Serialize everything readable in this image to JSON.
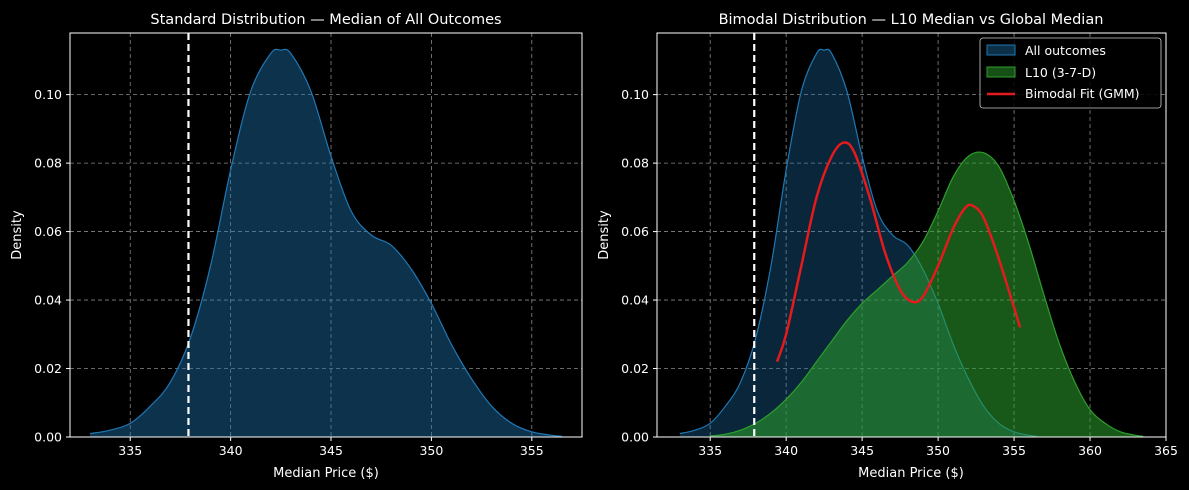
{
  "chart_data": [
    {
      "type": "area",
      "title": "Standard Distribution — Median of All Outcomes",
      "xlabel": "Median Price ($)",
      "ylabel": "Density",
      "xlim": [
        332,
        357.5
      ],
      "ylim": [
        0,
        0.118
      ],
      "xticks": [
        335,
        340,
        345,
        350,
        355
      ],
      "yticks": [
        0.0,
        0.02,
        0.04,
        0.06,
        0.08,
        0.1
      ],
      "ytick_labels": [
        "0.00",
        "0.02",
        "0.04",
        "0.06",
        "0.08",
        "0.10"
      ],
      "grid": true,
      "vline": 337.9,
      "series": [
        {
          "name": "All outcomes",
          "color": "#1f77b4",
          "x": [
            333,
            334,
            335,
            336,
            337,
            338,
            339,
            340,
            341,
            342,
            342.5,
            343,
            344,
            345,
            346,
            347,
            348,
            349,
            350,
            351,
            352,
            353,
            354,
            355,
            356,
            356.5
          ],
          "y": [
            0.001,
            0.002,
            0.004,
            0.009,
            0.016,
            0.029,
            0.05,
            0.078,
            0.101,
            0.112,
            0.113,
            0.112,
            0.101,
            0.082,
            0.066,
            0.059,
            0.056,
            0.049,
            0.039,
            0.027,
            0.017,
            0.009,
            0.004,
            0.0015,
            0.0005,
            0.0002
          ]
        }
      ]
    },
    {
      "type": "area",
      "title": "Bimodal Distribution — L10 Median vs Global Median",
      "xlabel": "Median Price ($)",
      "ylabel": "Density",
      "xlim": [
        331.5,
        365
      ],
      "ylim": [
        0,
        0.118
      ],
      "xticks": [
        335,
        340,
        345,
        350,
        355,
        360,
        365
      ],
      "yticks": [
        0.0,
        0.02,
        0.04,
        0.06,
        0.08,
        0.1
      ],
      "ytick_labels": [
        "0.00",
        "0.02",
        "0.04",
        "0.06",
        "0.08",
        "0.10"
      ],
      "grid": true,
      "vline": 337.9,
      "legend": {
        "position": "top-right",
        "entries": [
          "All outcomes",
          "L10 (3-7-D)",
          "Bimodal Fit (GMM)"
        ]
      },
      "series": [
        {
          "name": "All outcomes",
          "kind": "area",
          "color": "#1f77b4",
          "x": [
            333,
            334,
            335,
            336,
            337,
            338,
            339,
            340,
            341,
            342,
            342.5,
            343,
            344,
            345,
            346,
            347,
            348,
            349,
            350,
            351,
            352,
            353,
            354,
            355,
            356,
            356.5
          ],
          "y": [
            0.001,
            0.002,
            0.004,
            0.009,
            0.016,
            0.029,
            0.05,
            0.078,
            0.101,
            0.112,
            0.113,
            0.112,
            0.101,
            0.082,
            0.066,
            0.059,
            0.056,
            0.049,
            0.039,
            0.027,
            0.017,
            0.009,
            0.004,
            0.0015,
            0.0005,
            0.0002
          ]
        },
        {
          "name": "L10 (3-7-D)",
          "kind": "area",
          "color": "#2ca02c",
          "x": [
            335,
            336,
            337,
            338,
            339,
            340,
            341,
            342,
            343,
            344,
            345,
            346,
            347,
            348,
            349,
            350,
            351,
            352,
            353,
            354,
            355,
            356,
            357,
            358,
            359,
            360,
            361,
            362,
            363,
            363.5
          ],
          "y": [
            0.0003,
            0.0008,
            0.002,
            0.004,
            0.007,
            0.011,
            0.016,
            0.022,
            0.028,
            0.034,
            0.039,
            0.043,
            0.047,
            0.051,
            0.057,
            0.066,
            0.076,
            0.082,
            0.083,
            0.079,
            0.069,
            0.056,
            0.041,
            0.027,
            0.016,
            0.008,
            0.004,
            0.0015,
            0.0005,
            0.0002
          ]
        },
        {
          "name": "Bimodal Fit (GMM)",
          "kind": "line",
          "color": "#e41a1c",
          "x": [
            339.4,
            340,
            341,
            342,
            343,
            343.8,
            344.5,
            345.5,
            346.5,
            347.5,
            348.3,
            349,
            350,
            351,
            351.8,
            352.3,
            353,
            354,
            355.4
          ],
          "y": [
            0.022,
            0.03,
            0.05,
            0.07,
            0.082,
            0.086,
            0.083,
            0.07,
            0.054,
            0.043,
            0.0395,
            0.041,
            0.05,
            0.061,
            0.067,
            0.0675,
            0.064,
            0.052,
            0.032
          ]
        }
      ]
    }
  ]
}
